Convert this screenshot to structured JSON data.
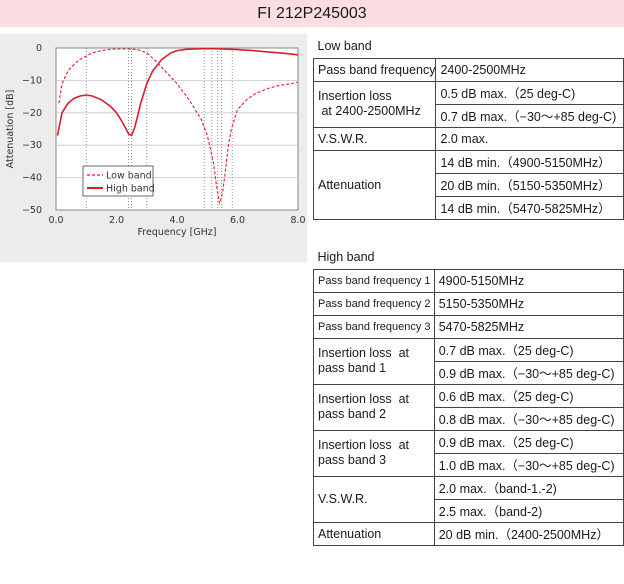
{
  "title": "FI 212P245003",
  "chart_data": {
    "type": "line",
    "xlabel": "Frequency [GHz]",
    "ylabel": "Attenuation [dB]",
    "xlim": [
      0,
      8
    ],
    "ylim": [
      -50,
      0
    ],
    "x_ticks": [
      "0.0",
      "2.0",
      "4.0",
      "6.0",
      "8.0"
    ],
    "y_ticks": [
      "0",
      "−10",
      "−20",
      "−30",
      "−40",
      "−50"
    ],
    "legend_position": "bottom-left",
    "series": [
      {
        "name": "Low band",
        "style": "dashed",
        "color": "#d8202a",
        "x": [
          0.1,
          0.2,
          0.4,
          0.6,
          0.8,
          1.0,
          1.2,
          1.5,
          1.8,
          2.0,
          2.2,
          2.45,
          2.7,
          3.0,
          3.3,
          3.6,
          4.0,
          4.4,
          4.8,
          5.0,
          5.2,
          5.3,
          5.4,
          5.5,
          5.6,
          5.7,
          5.8,
          6.0,
          6.3,
          6.6,
          7.0,
          7.4,
          7.8,
          8.0
        ],
        "y": [
          -17,
          -11,
          -7,
          -5,
          -3.5,
          -2.5,
          -1.5,
          -0.8,
          -0.4,
          -0.3,
          -0.3,
          -0.3,
          -0.5,
          -1.5,
          -4,
          -7,
          -11,
          -16,
          -22,
          -27,
          -35,
          -42,
          -48,
          -45,
          -38,
          -30,
          -25,
          -19,
          -16,
          -14,
          -12.5,
          -11.5,
          -11,
          -10.5
        ]
      },
      {
        "name": "High band",
        "style": "solid",
        "color": "#d8202a",
        "x": [
          0.05,
          0.2,
          0.4,
          0.6,
          0.8,
          1.0,
          1.2,
          1.5,
          1.8,
          2.0,
          2.2,
          2.4,
          2.5,
          2.6,
          2.7,
          2.8,
          3.0,
          3.2,
          3.5,
          3.8,
          4.0,
          4.3,
          4.6,
          5.0,
          5.5,
          6.0,
          6.5,
          7.0,
          7.5,
          8.0
        ],
        "y": [
          -27,
          -20,
          -17,
          -15.5,
          -14.8,
          -14.5,
          -14.8,
          -16,
          -18,
          -20,
          -23,
          -26.5,
          -27,
          -24.5,
          -21,
          -17,
          -11,
          -7,
          -3.5,
          -1.5,
          -0.8,
          -0.4,
          -0.3,
          -0.2,
          -0.3,
          -0.5,
          -0.8,
          -1.2,
          -1.6,
          -2.1
        ]
      }
    ],
    "dotted_reference_lines_x": [
      1.0,
      2.4,
      2.5,
      3.0,
      4.9,
      5.15,
      5.35,
      5.47,
      5.825
    ]
  },
  "low_band": {
    "header": "Low band",
    "pass_band_label": "Pass band frequency",
    "pass_band_value": "2400-2500MHz",
    "insertion_label_1": "Insertion loss",
    "insertion_label_2": " at 2400-2500MHz",
    "insertion_values": [
      "0.5 dB max.（25 deg-C)",
      "0.7 dB max.（−30～+85 deg-C)"
    ],
    "vswr_label": "V.S.W.R.",
    "vswr_value": "2.0 max.",
    "attenuation_label": "Attenuation",
    "attenuation_values": [
      "14 dB min.（4900-5150MHz）",
      "20 dB min.（5150-5350MHz）",
      "14 dB min.（5470-5825MHz）"
    ]
  },
  "high_band": {
    "header": "High band",
    "pass_bands": [
      {
        "label": "Pass band frequency 1",
        "value": "4900-5150MHz"
      },
      {
        "label": "Pass band frequency 2",
        "value": "5150-5350MHz"
      },
      {
        "label": "Pass band frequency 3",
        "value": "5470-5825MHz"
      }
    ],
    "insertion": [
      {
        "label_1": "Insertion loss  at",
        "label_2": "pass band 1",
        "values": [
          "0.7 dB max.（25 deg-C)",
          "0.9 dB max.（−30～+85 deg-C)"
        ]
      },
      {
        "label_1": "Insertion loss  at",
        "label_2": "pass band 2",
        "values": [
          "0.6 dB max.（25 deg-C)",
          "0.8 dB max.（−30～+85 deg-C)"
        ]
      },
      {
        "label_1": "Insertion loss  at",
        "label_2": "pass band 3",
        "values": [
          "0.9 dB max.（25 deg-C)",
          "1.0 dB max.（−30～+85 deg-C)"
        ]
      }
    ],
    "vswr_label": "V.S.W.R.",
    "vswr_values": [
      "2.0 max.（band-1.-2)",
      "2.5 max.（band-2)"
    ],
    "attenuation_label": "Attenuation",
    "attenuation_value": "20 dB min.（2400-2500MHz）"
  }
}
